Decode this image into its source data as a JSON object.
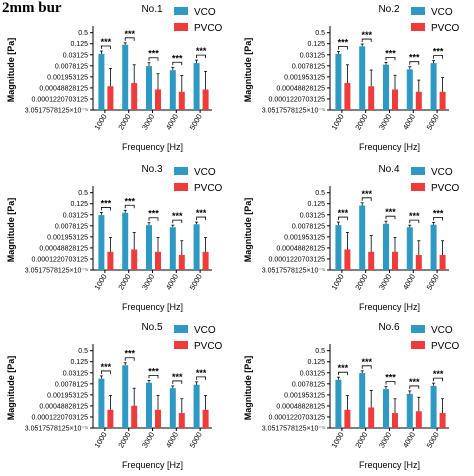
{
  "figure_title": "2mm bur",
  "colors": {
    "VCO": "#2e9ac4",
    "PVCO": "#ee3b3b"
  },
  "significance_label": "***",
  "chart_data": [
    {
      "type": "bar",
      "title": "No.1",
      "xlabel": "Frequency [Hz]",
      "ylabel": "Magnitude [Pa]",
      "y_scale": "log2",
      "categories": [
        "1000",
        "2000",
        "3000",
        "4000",
        "5000"
      ],
      "y_ticks": [
        "0.5",
        "0.125",
        "0.03125",
        "0.0078125",
        "0.001953125",
        "0.00048828125",
        "0.0001220703125",
        "3.0517578125×10⁻⁵"
      ],
      "y_tick_values": [
        0.5,
        0.125,
        0.03125,
        0.0078125,
        0.001953125,
        0.00048828125,
        0.0001220703125,
        3.0517578125e-05
      ],
      "ylim": [
        3.0517578125e-05,
        0.7
      ],
      "legend": "top-right",
      "series": [
        {
          "name": "VCO",
          "values": [
            0.035,
            0.11,
            0.0075,
            0.0045,
            0.011
          ],
          "errors": [
            0.015,
            0.03,
            0.004,
            0.002,
            0.005
          ]
        },
        {
          "name": "PVCO",
          "values": [
            0.0006,
            0.0009,
            0.0004,
            0.0003,
            0.0004
          ],
          "errors": [
            0.005,
            0.008,
            0.0025,
            0.002,
            0.0035
          ]
        }
      ]
    },
    {
      "type": "bar",
      "title": "No.2",
      "xlabel": "Frequency [Hz]",
      "ylabel": "Magnitude [Pa]",
      "y_scale": "log2",
      "categories": [
        "1000",
        "2000",
        "3000",
        "4000",
        "5000"
      ],
      "y_ticks": [
        "0.5",
        "0.125",
        "0.03125",
        "0.0078125",
        "0.001953125",
        "0.00048828125",
        "0.0001220703125",
        "3.0517578125×10⁻⁵"
      ],
      "y_tick_values": [
        0.5,
        0.125,
        0.03125,
        0.0078125,
        0.001953125,
        0.00048828125,
        0.0001220703125,
        3.0517578125e-05
      ],
      "ylim": [
        3.0517578125e-05,
        0.7
      ],
      "legend": "top-right",
      "series": [
        {
          "name": "VCO",
          "values": [
            0.035,
            0.09,
            0.009,
            0.005,
            0.011
          ],
          "errors": [
            0.012,
            0.03,
            0.003,
            0.002,
            0.004
          ]
        },
        {
          "name": "PVCO",
          "values": [
            0.0009,
            0.0006,
            0.0004,
            0.0003,
            0.0003
          ],
          "errors": [
            0.008,
            0.004,
            0.002,
            0.001,
            0.0015
          ]
        }
      ]
    },
    {
      "type": "bar",
      "title": "No.3",
      "xlabel": "Frequency [Hz]",
      "ylabel": "Magnitude [Pa]",
      "y_scale": "log2",
      "categories": [
        "1000",
        "2000",
        "3000",
        "4000",
        "5000"
      ],
      "y_ticks": [
        "0.5",
        "0.125",
        "0.03125",
        "0.0078125",
        "0.001953125",
        "0.00048828125",
        "0.0001220703125",
        "3.0517578125×10⁻⁵"
      ],
      "y_tick_values": [
        0.5,
        0.125,
        0.03125,
        0.0078125,
        0.001953125,
        0.00048828125,
        0.0001220703125,
        3.0517578125e-05
      ],
      "ylim": [
        3.0517578125e-05,
        0.7
      ],
      "legend": "top-right",
      "series": [
        {
          "name": "VCO",
          "values": [
            0.03,
            0.04,
            0.0085,
            0.0065,
            0.0095
          ],
          "errors": [
            0.012,
            0.015,
            0.003,
            0.002,
            0.003
          ]
        },
        {
          "name": "PVCO",
          "values": [
            0.0003,
            0.0004,
            0.0003,
            0.0002,
            0.0003
          ],
          "errors": [
            0.0015,
            0.003,
            0.0015,
            0.001,
            0.0015
          ]
        }
      ]
    },
    {
      "type": "bar",
      "title": "No.4",
      "xlabel": "Frequency [Hz]",
      "ylabel": "Magnitude [Pa]",
      "y_scale": "log2",
      "categories": [
        "1000",
        "2000",
        "3000",
        "4000",
        "5000"
      ],
      "y_ticks": [
        "0.5",
        "0.125",
        "0.03125",
        "0.0078125",
        "0.001953125",
        "0.00048828125",
        "0.0001220703125",
        "3.0517578125×10⁻⁵"
      ],
      "y_tick_values": [
        0.5,
        0.125,
        0.03125,
        0.0078125,
        0.001953125,
        0.00048828125,
        0.0001220703125,
        3.0517578125e-05
      ],
      "ylim": [
        3.0517578125e-05,
        0.7
      ],
      "legend": "top-right",
      "series": [
        {
          "name": "VCO",
          "values": [
            0.0085,
            0.1,
            0.01,
            0.0065,
            0.009
          ],
          "errors": [
            0.004,
            0.04,
            0.004,
            0.002,
            0.003
          ]
        },
        {
          "name": "PVCO",
          "values": [
            0.0004,
            0.0003,
            0.0003,
            0.0002,
            0.0002
          ],
          "errors": [
            0.003,
            0.002,
            0.0015,
            0.001,
            0.001
          ]
        }
      ]
    },
    {
      "type": "bar",
      "title": "No.5",
      "xlabel": "Frequency [Hz]",
      "ylabel": "Magnitude [Pa]",
      "y_scale": "log2",
      "categories": [
        "1000",
        "2000",
        "3000",
        "4000",
        "5000"
      ],
      "y_ticks": [
        "0.5",
        "0.125",
        "0.03125",
        "0.0078125",
        "0.001953125",
        "0.00048828125",
        "0.0001220703125",
        "3.0517578125×10⁻⁵"
      ],
      "y_tick_values": [
        0.5,
        0.125,
        0.03125,
        0.0078125,
        0.001953125,
        0.00048828125,
        0.0001220703125,
        3.0517578125e-05
      ],
      "ylim": [
        3.0517578125e-05,
        0.7
      ],
      "legend": "top-right",
      "series": [
        {
          "name": "VCO",
          "values": [
            0.015,
            0.08,
            0.009,
            0.0045,
            0.007
          ],
          "errors": [
            0.006,
            0.03,
            0.003,
            0.0015,
            0.003
          ]
        },
        {
          "name": "PVCO",
          "values": [
            0.0003,
            0.0005,
            0.0003,
            0.0002,
            0.0003
          ],
          "errors": [
            0.0015,
            0.004,
            0.0015,
            0.001,
            0.0015
          ]
        }
      ]
    },
    {
      "type": "bar",
      "title": "No.6",
      "xlabel": "Frequency [Hz]",
      "ylabel": "Magnitude [Pa]",
      "y_scale": "log2",
      "categories": [
        "1000",
        "2000",
        "3000",
        "4000",
        "5000"
      ],
      "y_ticks": [
        "0.5",
        "0.125",
        "0.03125",
        "0.0078125",
        "0.001953125",
        "0.00048828125",
        "0.0001220703125",
        "3.0517578125×10⁻⁵"
      ],
      "y_tick_values": [
        0.5,
        0.125,
        0.03125,
        0.0078125,
        0.001953125,
        0.00048828125,
        0.0001220703125,
        3.0517578125e-05
      ],
      "ylim": [
        3.0517578125e-05,
        0.7
      ],
      "legend": "top-right",
      "series": [
        {
          "name": "VCO",
          "values": [
            0.013,
            0.03,
            0.004,
            0.0022,
            0.006
          ],
          "errors": [
            0.005,
            0.01,
            0.0015,
            0.001,
            0.0025
          ]
        },
        {
          "name": "PVCO",
          "values": [
            0.0003,
            0.0004,
            0.0002,
            0.00025,
            0.0002
          ],
          "errors": [
            0.0015,
            0.003,
            0.001,
            0.0012,
            0.001
          ]
        }
      ]
    }
  ]
}
